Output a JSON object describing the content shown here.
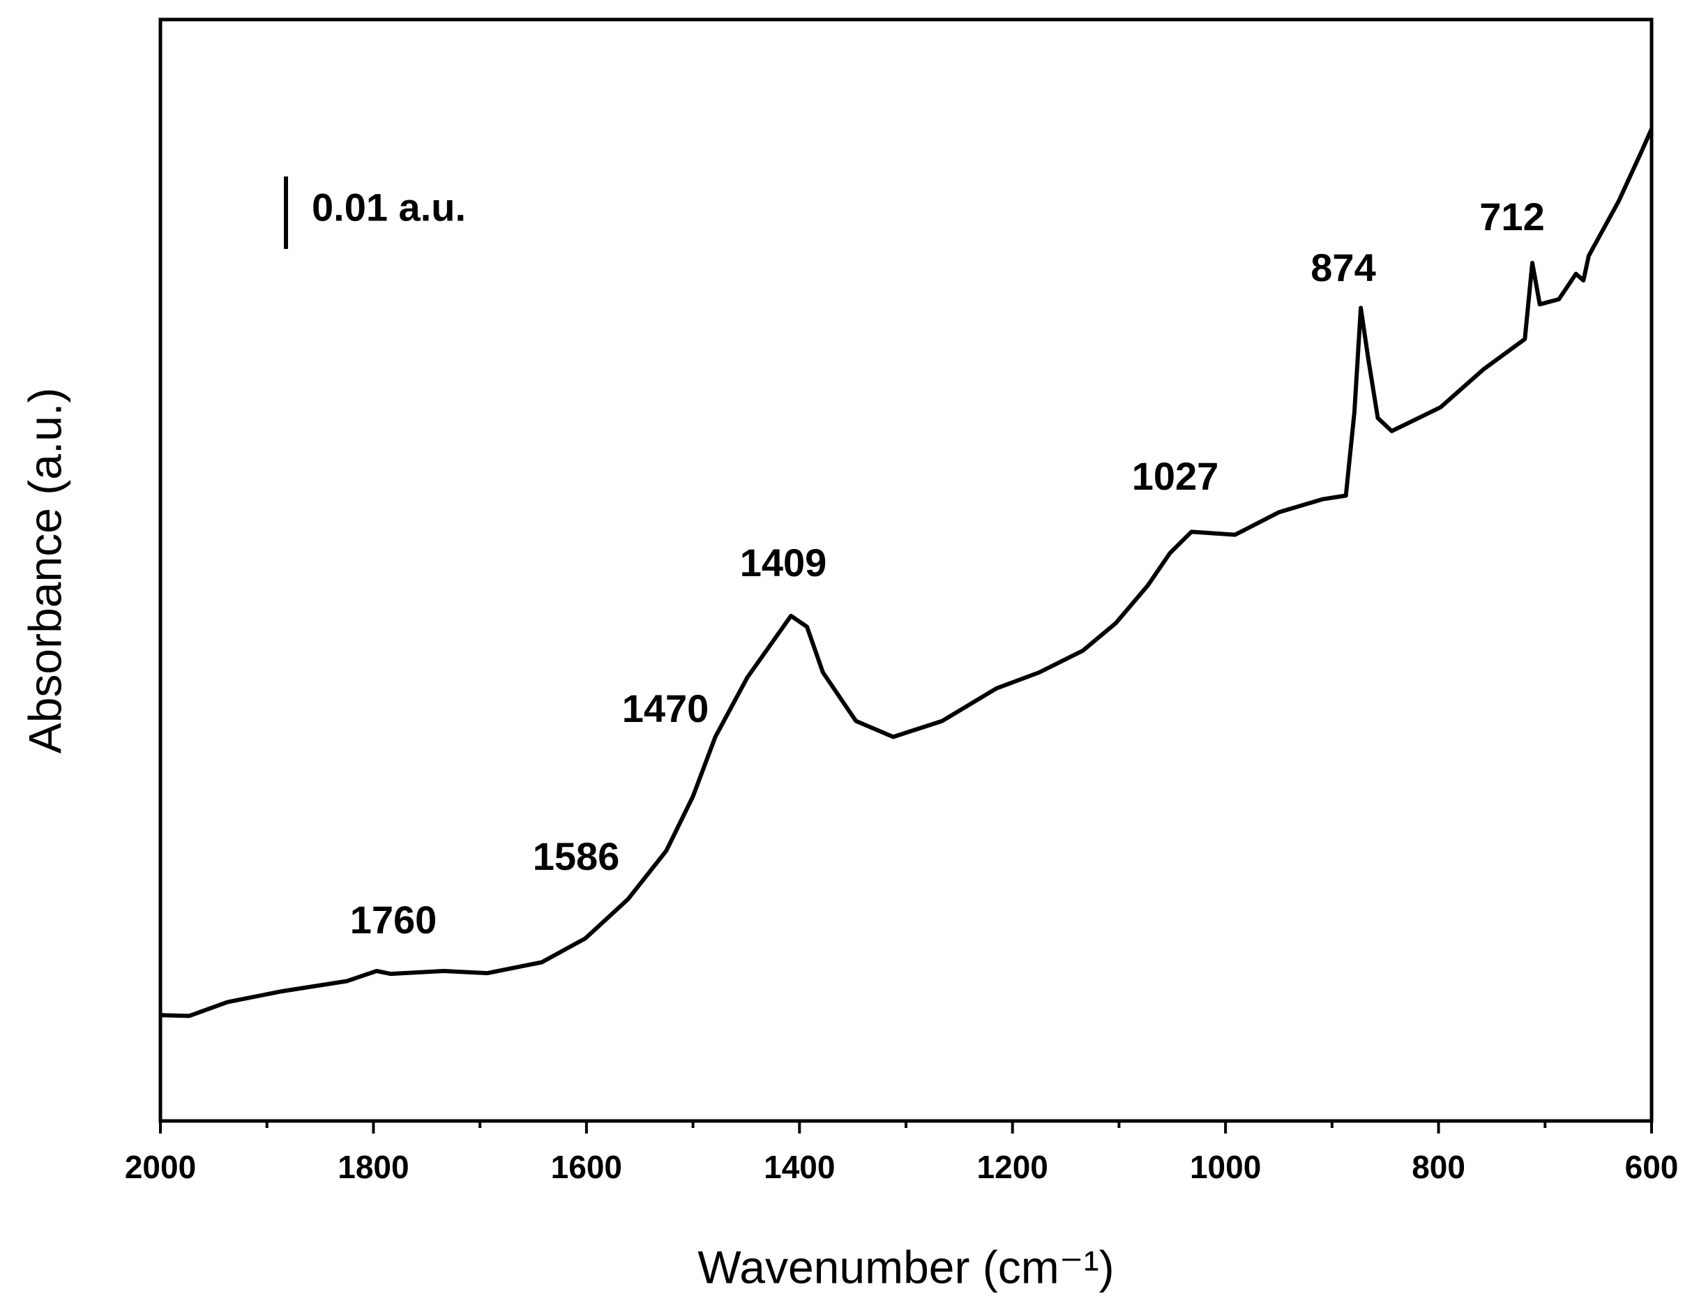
{
  "chart_data": {
    "type": "line",
    "x_label": "Wavenumber (cm⁻¹)",
    "y_label": "Absorbance (a.u.)",
    "x": [
      2000,
      1973,
      1937,
      1886,
      1825,
      1797,
      1784,
      1734,
      1693,
      1642,
      1601,
      1561,
      1525,
      1500,
      1479,
      1449,
      1408,
      1393,
      1378,
      1347,
      1312,
      1266,
      1215,
      1175,
      1134,
      1103,
      1073,
      1052,
      1032,
      991,
      950,
      909,
      887,
      879,
      873,
      866,
      857,
      844,
      798,
      758,
      719,
      712,
      705,
      687,
      671,
      664,
      659,
      631,
      610,
      600
    ],
    "values": [
      0.0146,
      0.0145,
      0.0164,
      0.0179,
      0.0193,
      0.0207,
      0.0203,
      0.0207,
      0.0204,
      0.0219,
      0.0252,
      0.0306,
      0.0373,
      0.0448,
      0.053,
      0.0612,
      0.0697,
      0.0682,
      0.0619,
      0.0552,
      0.053,
      0.0552,
      0.0597,
      0.0619,
      0.0649,
      0.0687,
      0.0739,
      0.0784,
      0.0813,
      0.0809,
      0.084,
      0.0858,
      0.0863,
      0.0978,
      0.1122,
      0.1052,
      0.097,
      0.0952,
      0.0985,
      0.1037,
      0.1079,
      0.1184,
      0.1127,
      0.1134,
      0.1169,
      0.116,
      0.1194,
      0.1269,
      0.1336,
      0.1369
    ],
    "color": "#000000",
    "xlim": [
      2000,
      600
    ],
    "ylim": [
      0,
      0.152
    ],
    "xticks": [
      2000,
      1800,
      1600,
      1400,
      1200,
      1000,
      800,
      600
    ],
    "xminorticks": [
      1900,
      1700,
      1500,
      1300,
      1100,
      900,
      700
    ],
    "scale_bar": {
      "value": 0.01,
      "label": "0.01 a.u."
    },
    "annotations": [
      "1760",
      "1586",
      "1470",
      "1409",
      "1027",
      "874",
      "712"
    ]
  }
}
